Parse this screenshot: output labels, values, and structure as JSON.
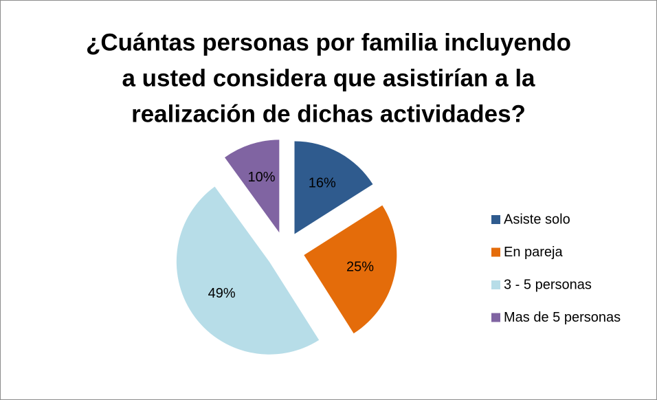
{
  "chart_data": {
    "type": "pie",
    "title": [
      "¿Cuántas personas por familia incluyendo",
      "a usted considera que asistirían a la",
      "realización de dichas actividades?"
    ],
    "categories": [
      "Asiste solo",
      "En pareja",
      "3  - 5 personas",
      "Mas de 5 personas"
    ],
    "values": [
      16,
      25,
      49,
      10
    ],
    "value_labels": [
      "16%",
      "25%",
      "49%",
      "10%"
    ],
    "colors": [
      "#2f5b8e",
      "#e46c0a",
      "#b7dde8",
      "#8064a2"
    ],
    "legend": "right"
  }
}
